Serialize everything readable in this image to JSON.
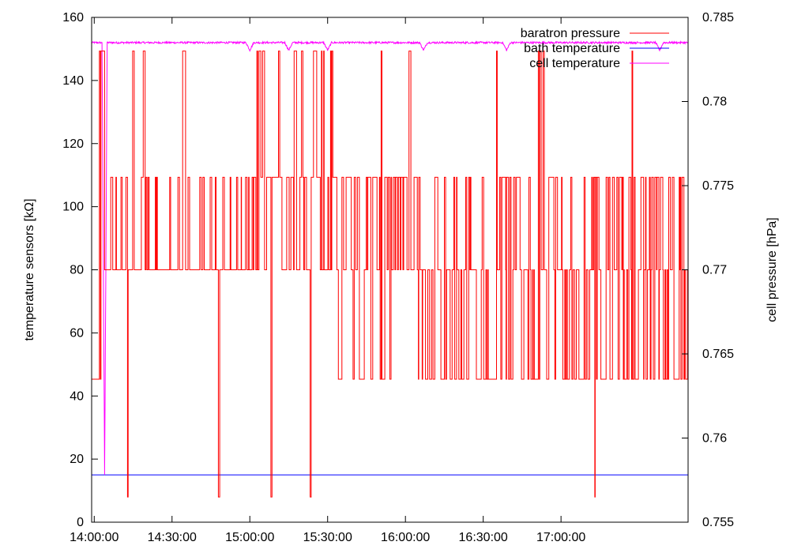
{
  "chart_data": {
    "type": "line",
    "x_axis": {
      "unit": "time",
      "min": "13:59:00",
      "max": "17:49:00",
      "ticks": [
        "14:00:00",
        "14:30:00",
        "15:00:00",
        "15:30:00",
        "16:00:00",
        "16:30:00",
        "17:00:00"
      ]
    },
    "y_left": {
      "label": "temperature sensors [kΩ]",
      "min": 0,
      "max": 160,
      "ticks": [
        0,
        20,
        40,
        60,
        80,
        100,
        120,
        140,
        160
      ]
    },
    "y_right": {
      "label": "cell pressure [hPa]",
      "min": 0.755,
      "max": 0.785,
      "ticks": [
        "0.755",
        "0.76",
        "0.765",
        "0.77",
        "0.775",
        "0.78",
        "0.785"
      ]
    },
    "legend_position": "top-right",
    "grid": false,
    "series": [
      {
        "name": "baratron pressure",
        "axis": "right",
        "color": "#ff0000",
        "levels": [
          0.7635,
          0.77,
          0.7755,
          0.783
        ],
        "outliers_low": 0.7565,
        "segments": [
          {
            "start": "14:02:00",
            "end": "14:04:00",
            "low": 0.7635,
            "high": 0.783
          },
          {
            "start": "14:04:00",
            "end": "14:58:00",
            "low": 0.77,
            "high": 0.7755
          },
          {
            "start": "14:58:00",
            "end": "15:32:00",
            "low": 0.77,
            "high": 0.783
          },
          {
            "start": "15:32:00",
            "end": "16:05:00",
            "low": 0.7635,
            "high": 0.7755
          },
          {
            "start": "16:05:00",
            "end": "17:49:00",
            "low": 0.7635,
            "high": 0.7755
          }
        ]
      },
      {
        "name": "bath temperature",
        "axis": "left",
        "color": "#0000ff",
        "x": [
          "13:59:00",
          "17:49:00"
        ],
        "y": [
          15.0,
          15.0
        ]
      },
      {
        "name": "cell temperature",
        "axis": "left",
        "color": "#ff00ff",
        "x": [
          "13:59:00",
          "14:03:00",
          "14:04:00",
          "14:04:30",
          "14:05:00",
          "17:49:00"
        ],
        "y": [
          152,
          152,
          15,
          152,
          152,
          152
        ],
        "dips": [
          "15:00:00",
          "15:15:00",
          "15:30:00",
          "16:07:00",
          "16:39:00",
          "17:38:00"
        ]
      }
    ]
  }
}
